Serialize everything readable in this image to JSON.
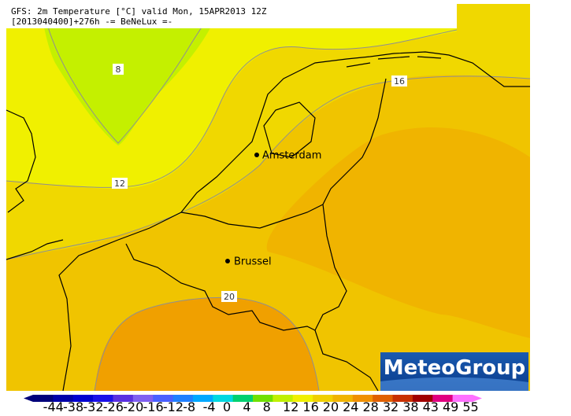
{
  "header": {
    "line1": "GFS: 2m Temperature [°C] valid Mon, 15APR2013 12Z",
    "line2": "[2013040400]+276h -= BeNeLux =-"
  },
  "contour_labels": [
    "8",
    "12",
    "16",
    "20"
  ],
  "cities": [
    "Amsterdam",
    "Brussel"
  ],
  "logo": "MeteoGroup",
  "colorbar": {
    "labels": [
      -44,
      -38,
      -32,
      -26,
      -20,
      -16,
      -12,
      -8,
      -4,
      0,
      4,
      8,
      12,
      16,
      20,
      24,
      28,
      32,
      38,
      43,
      49,
      55
    ],
    "colors": [
      "#00007a",
      "#0000a8",
      "#0000d0",
      "#1a10e8",
      "#5a30e0",
      "#8060f0",
      "#4a60ff",
      "#2080ff",
      "#00a8ff",
      "#00d8e0",
      "#00d070",
      "#70e000",
      "#c0f000",
      "#f0f000",
      "#f0d000",
      "#f0b400",
      "#f09000",
      "#e06000",
      "#c83000",
      "#a00000",
      "#e00080",
      "#ff70ff"
    ]
  }
}
